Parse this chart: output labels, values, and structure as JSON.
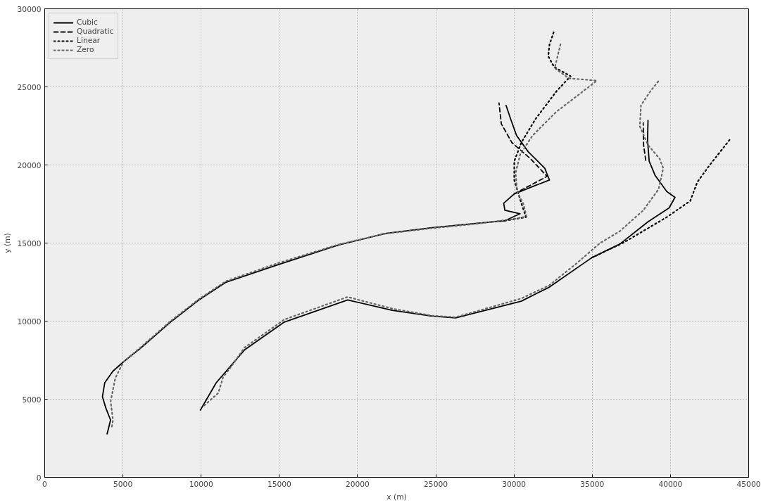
{
  "chart_data": {
    "type": "line",
    "xlabel": "x (m)",
    "ylabel": "y (m)",
    "xlim": [
      0,
      45000
    ],
    "ylim": [
      0,
      30000
    ],
    "xticks": [
      0,
      5000,
      10000,
      15000,
      20000,
      25000,
      30000,
      35000,
      40000,
      45000
    ],
    "yticks": [
      0,
      5000,
      10000,
      15000,
      20000,
      25000,
      30000
    ],
    "grid": true,
    "legend": "top left",
    "marker": "none",
    "series": [
      {
        "name": "Cubic",
        "color": "#000000",
        "line_style": "solid",
        "x": [
          3990,
          4210,
          3915,
          3690,
          3840,
          4365,
          5040,
          6165,
          8040,
          9850,
          11565,
          14865,
          18765,
          21765,
          24765,
          27765,
          29415,
          30390,
          29415,
          29340,
          30015,
          32265,
          31965,
          30915,
          30165,
          29790,
          29490,
          null,
          9950,
          10965,
          11865,
          12765,
          15315,
          19365,
          22215,
          24765,
          26265,
          30465,
          32265,
          34965,
          36765,
          38565,
          39915,
          40290,
          39765,
          39015,
          38640,
          38535,
          38565
        ],
        "values": [
          2780,
          3670,
          4420,
          5160,
          6060,
          6800,
          7400,
          8300,
          9940,
          11350,
          12480,
          13600,
          14870,
          15610,
          15990,
          16280,
          16430,
          16880,
          17100,
          17550,
          18150,
          19040,
          19790,
          20840,
          21880,
          22930,
          23820,
          null,
          4300,
          6060,
          7100,
          8150,
          9940,
          11360,
          10690,
          10320,
          10210,
          11280,
          12180,
          14060,
          14940,
          16360,
          17250,
          17930,
          18300,
          19340,
          20240,
          21580,
          22850
        ]
      },
      {
        "name": "Quadratic",
        "color": "#000000",
        "line_style": "dashed",
        "x": [
          30015,
          32115,
          31065,
          29865,
          29190,
          29040,
          null,
          38420,
          38280,
          38260
        ],
        "values": [
          18150,
          19270,
          20390,
          21430,
          22630,
          23970,
          null,
          20300,
          21300,
          22700
        ]
      },
      {
        "name": "Linear",
        "color": "#000000",
        "line_style": "dotted",
        "x": [
          29415,
          30765,
          30465,
          30015,
          30015,
          30465,
          31365,
          32715,
          33615,
          32565,
          32190,
          32265,
          32565,
          null,
          34965,
          36990,
          39765,
          41265,
          41715,
          42465,
          43815
        ],
        "values": [
          16430,
          16660,
          17550,
          19040,
          20240,
          21430,
          22930,
          24720,
          25690,
          26270,
          26960,
          27700,
          28590,
          null,
          14060,
          15020,
          16660,
          17700,
          18900,
          19940,
          21650
        ]
      },
      {
        "name": "Zero",
        "color": "#666666",
        "line_style": "dotted",
        "x": [
          4290,
          4365,
          4215,
          4515,
          5040,
          6165,
          8040,
          9850,
          11565,
          14865,
          18765,
          21765,
          24765,
          27765,
          30015,
          30800,
          30600,
          30200,
          30100,
          30400,
          31200,
          32700,
          35300,
          33500,
          32600,
          33000,
          null,
          10200,
          11100,
          11400,
          12000,
          12765,
          15315,
          19365,
          22215,
          24765,
          26265,
          30465,
          32265,
          34000,
          35500,
          36765,
          38265,
          39240,
          39540,
          39315,
          38565,
          38040,
          38115,
          38715,
          39315
        ],
        "values": [
          3250,
          3670,
          4870,
          6360,
          7400,
          8350,
          10000,
          11400,
          12550,
          13700,
          14900,
          15600,
          15950,
          16250,
          16550,
          16700,
          17500,
          18300,
          19500,
          20700,
          21900,
          23400,
          25400,
          25550,
          26200,
          27850,
          null,
          4600,
          5400,
          6400,
          7200,
          8300,
          10100,
          11550,
          10800,
          10350,
          10250,
          11450,
          12300,
          13700,
          15000,
          15760,
          17100,
          18450,
          19790,
          20390,
          21280,
          22480,
          23820,
          24720,
          25470
        ]
      }
    ]
  }
}
